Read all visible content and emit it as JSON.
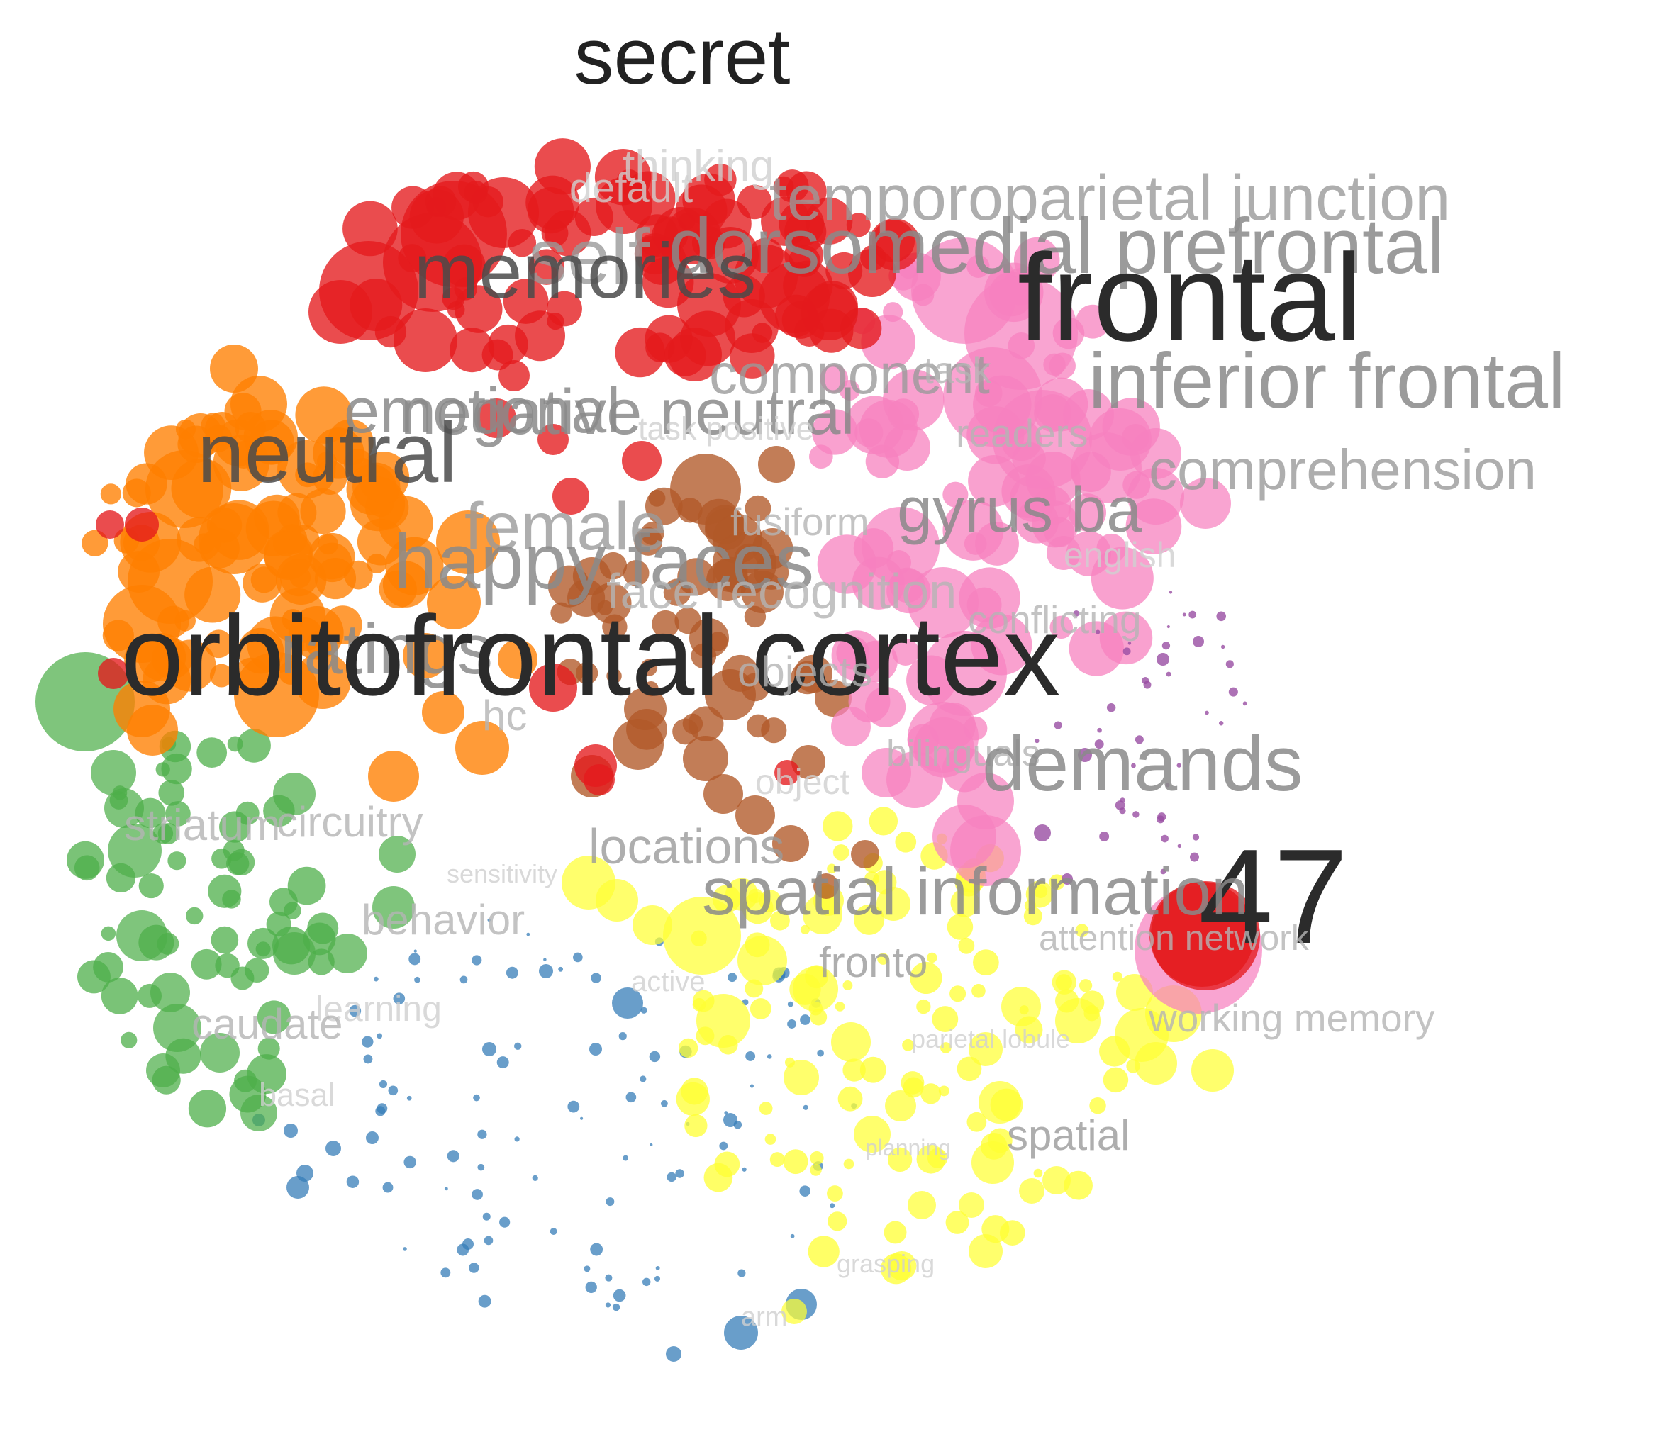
{
  "title": "secret",
  "clusters": [
    {
      "name": "red",
      "color": "#e41a1c"
    },
    {
      "name": "orange",
      "color": "#ff7f00"
    },
    {
      "name": "pink",
      "color": "#f781bf"
    },
    {
      "name": "brown",
      "color": "#b15928"
    },
    {
      "name": "green",
      "color": "#4daf4a"
    },
    {
      "name": "blue",
      "color": "#377eb8"
    },
    {
      "name": "yellow",
      "color": "#ffff33"
    },
    {
      "name": "purple",
      "color": "#984ea3"
    }
  ],
  "terms": [
    {
      "text": "thinking",
      "tone": 5
    },
    {
      "text": "default",
      "tone": 5
    },
    {
      "text": "temporoparietal junction",
      "tone": 3
    },
    {
      "text": "self",
      "tone": 3
    },
    {
      "text": "dorsomedial prefrontal",
      "tone": 2
    },
    {
      "text": "memories",
      "tone": 1
    },
    {
      "text": "frontal",
      "tone": 0
    },
    {
      "text": "component",
      "tone": 3
    },
    {
      "text": "task",
      "tone": 4
    },
    {
      "text": "inferior frontal",
      "tone": 2
    },
    {
      "text": "emotional",
      "tone": 2
    },
    {
      "text": "negative neutral",
      "tone": 2
    },
    {
      "text": "task positive",
      "tone": 5
    },
    {
      "text": "readers",
      "tone": 4
    },
    {
      "text": "neutral",
      "tone": 1
    },
    {
      "text": "comprehension",
      "tone": 3
    },
    {
      "text": "female",
      "tone": 3
    },
    {
      "text": "fusiform",
      "tone": 4
    },
    {
      "text": "gyrus ba",
      "tone": 2
    },
    {
      "text": "english",
      "tone": 5
    },
    {
      "text": "happy faces",
      "tone": 2
    },
    {
      "text": "face recognition",
      "tone": 4
    },
    {
      "text": "conflicting",
      "tone": 4
    },
    {
      "text": "ratings",
      "tone": 2
    },
    {
      "text": "orbitofrontal cortex",
      "tone": 0
    },
    {
      "text": "objects",
      "tone": 4
    },
    {
      "text": "hc",
      "tone": 4
    },
    {
      "text": "bilinguals",
      "tone": 4
    },
    {
      "text": "demands",
      "tone": 2
    },
    {
      "text": "object",
      "tone": 5
    },
    {
      "text": "striatum",
      "tone": 4
    },
    {
      "text": "circuitry",
      "tone": 4
    },
    {
      "text": "locations",
      "tone": 3
    },
    {
      "text": "sensitivity",
      "tone": 5
    },
    {
      "text": "47",
      "tone": 0
    },
    {
      "text": "spatial information",
      "tone": 2
    },
    {
      "text": "behavior",
      "tone": 4
    },
    {
      "text": "attention network",
      "tone": 4
    },
    {
      "text": "fronto",
      "tone": 3
    },
    {
      "text": "active",
      "tone": 5
    },
    {
      "text": "learning",
      "tone": 5
    },
    {
      "text": "caudate",
      "tone": 4
    },
    {
      "text": "working memory",
      "tone": 4
    },
    {
      "text": "parietal lobule",
      "tone": 5
    },
    {
      "text": "basal",
      "tone": 5
    },
    {
      "text": "spatial",
      "tone": 3
    },
    {
      "text": "planning",
      "tone": 5
    },
    {
      "text": "grasping",
      "tone": 5
    },
    {
      "text": "arm",
      "tone": 5
    }
  ],
  "tone_colors": [
    "#2b2b2b",
    "#4a4a4a",
    "#8a8a8a",
    "#9a9a9a",
    "#b4b4b4",
    "#d0d0d0"
  ]
}
